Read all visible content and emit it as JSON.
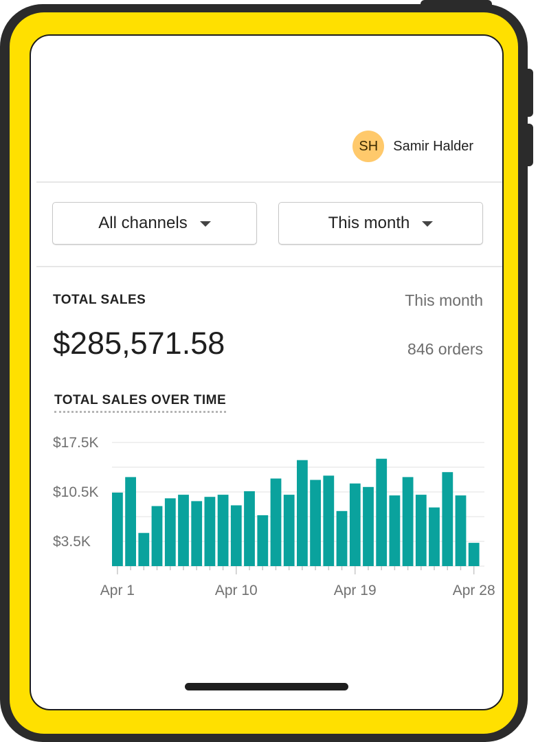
{
  "user": {
    "initials": "SH",
    "name": "Samir Halder"
  },
  "filters": {
    "channel": "All channels",
    "period": "This month"
  },
  "summary": {
    "label": "TOTAL SALES",
    "period": "This month",
    "value": "$285,571.58",
    "orders": "846 orders"
  },
  "colors": {
    "bar": "#0AA29D",
    "frame": "#FFE000",
    "avatar": "#FFC96B"
  },
  "icons": {
    "dropdown": "caret-down-icon"
  },
  "chart_data": {
    "type": "bar",
    "title": "TOTAL SALES OVER TIME",
    "xlabel": "",
    "ylabel": "",
    "yticks": [
      "$17.5K",
      "$10.5K",
      "$3.5K"
    ],
    "ytick_values": [
      17500,
      10500,
      3500
    ],
    "xtick_labels": [
      "Apr 1",
      "Apr 10",
      "Apr 19",
      "Apr 28"
    ],
    "ylim": [
      0,
      17500
    ],
    "categories": [
      "Apr 1",
      "Apr 2",
      "Apr 3",
      "Apr 4",
      "Apr 5",
      "Apr 6",
      "Apr 7",
      "Apr 8",
      "Apr 9",
      "Apr 10",
      "Apr 11",
      "Apr 12",
      "Apr 13",
      "Apr 14",
      "Apr 15",
      "Apr 16",
      "Apr 17",
      "Apr 18",
      "Apr 19",
      "Apr 20",
      "Apr 21",
      "Apr 22",
      "Apr 23",
      "Apr 24",
      "Apr 25",
      "Apr 26",
      "Apr 27",
      "Apr 28"
    ],
    "values": [
      10400,
      12600,
      4700,
      8500,
      9600,
      10100,
      9200,
      9800,
      10100,
      8600,
      10600,
      7200,
      12400,
      10100,
      15000,
      12200,
      12800,
      7800,
      11700,
      11200,
      15200,
      10000,
      12600,
      10100,
      8300,
      13300,
      10000,
      3300
    ],
    "grid": true
  }
}
